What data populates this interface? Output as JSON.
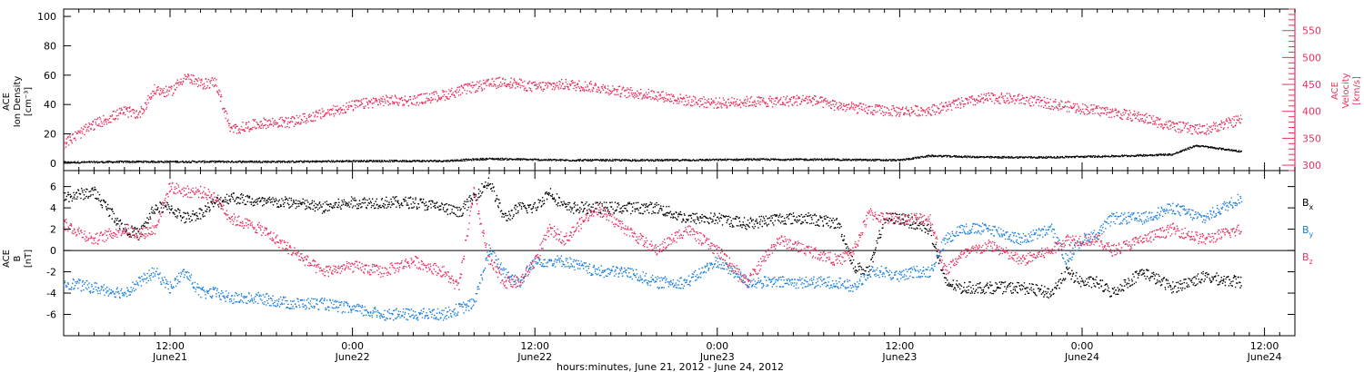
{
  "colors": {
    "axis": "#000000",
    "density": "#000000",
    "velocity": "#e8325e",
    "bx": "#000000",
    "by": "#1a7fe0",
    "bz": "#e8325e"
  },
  "x_axis": {
    "title": "hours:minutes, June 21, 2012 - June 24, 2012",
    "range_hours": [
      5,
      86
    ],
    "ticks": [
      {
        "hour": 12,
        "label": "12:00",
        "date": "June21"
      },
      {
        "hour": 24,
        "label": "0:00",
        "date": "June22"
      },
      {
        "hour": 36,
        "label": "12:00",
        "date": "June22"
      },
      {
        "hour": 48,
        "label": "0:00",
        "date": "June23"
      },
      {
        "hour": 60,
        "label": "12:00",
        "date": "June23"
      },
      {
        "hour": 72,
        "label": "0:00",
        "date": "June24"
      },
      {
        "hour": 84,
        "label": "12:00",
        "date": "June24"
      }
    ]
  },
  "chart_data": [
    {
      "type": "scatter",
      "panel": "top",
      "ylabel_left": [
        "ACE",
        "Ion Density",
        "[cm⁻³]"
      ],
      "ylabel_right": [
        "ACE",
        "Velocity",
        "[km/s]"
      ],
      "ylim_left": [
        -5,
        105
      ],
      "ylim_right": [
        290,
        590
      ],
      "yticks_left": [
        0,
        20,
        40,
        60,
        80,
        100
      ],
      "yticks_right": [
        300,
        350,
        400,
        450,
        500,
        550
      ],
      "series": [
        {
          "key": "density",
          "axis": "left",
          "x_hours": [
            5,
            10,
            15,
            20,
            25,
            30,
            33,
            38,
            45,
            50,
            55,
            60,
            62,
            66,
            70,
            75,
            78,
            79.5,
            81,
            82.5
          ],
          "values": [
            0.5,
            1,
            1,
            1,
            1.5,
            1.5,
            3,
            2,
            2,
            2.5,
            2.5,
            2,
            5,
            4,
            4,
            5,
            6,
            12,
            10,
            8
          ]
        },
        {
          "key": "velocity",
          "axis": "right",
          "x_hours": [
            5,
            7,
            9,
            10,
            11,
            12,
            13,
            14,
            15,
            16,
            18,
            20,
            22,
            24,
            26,
            28,
            30,
            32,
            34,
            36,
            38,
            40,
            42,
            44,
            46,
            48,
            50,
            52,
            54,
            56,
            58,
            60,
            62,
            64,
            66,
            68,
            70,
            72,
            74,
            76,
            78,
            80,
            82.5
          ],
          "values": [
            340,
            375,
            400,
            395,
            440,
            435,
            465,
            450,
            455,
            365,
            378,
            380,
            395,
            410,
            420,
            420,
            430,
            445,
            455,
            445,
            450,
            445,
            435,
            430,
            420,
            415,
            418,
            418,
            422,
            410,
            403,
            400,
            402,
            415,
            425,
            422,
            414,
            405,
            398,
            388,
            372,
            365,
            385
          ]
        }
      ]
    },
    {
      "type": "scatter",
      "panel": "bottom",
      "ylabel_left": [
        "ACE",
        "B",
        "[nT]"
      ],
      "ylim": [
        -8,
        7.5
      ],
      "yticks": [
        -6,
        -4,
        -2,
        0,
        2,
        4,
        6
      ],
      "legend_location": "right",
      "series": [
        {
          "key": "bx",
          "label": "B",
          "subscript": "x",
          "x_hours": [
            5,
            7,
            9,
            10,
            11,
            12,
            13,
            14,
            15,
            16,
            18,
            20,
            22,
            24,
            26,
            28,
            30,
            31,
            32,
            33,
            34,
            35,
            36,
            37,
            38,
            40,
            42,
            44,
            46,
            48,
            50,
            52,
            54,
            56,
            57,
            58,
            59,
            60,
            61,
            62,
            63,
            64,
            66,
            68,
            70,
            71,
            72,
            73,
            74,
            76,
            78,
            80,
            82.5
          ],
          "values": [
            5,
            5.5,
            2,
            1.5,
            4,
            4,
            3,
            3.5,
            4.5,
            5,
            4.5,
            4.5,
            4,
            4.5,
            4.5,
            4.5,
            4,
            3.5,
            5,
            6.5,
            3,
            4,
            4,
            5.5,
            4,
            4,
            4,
            4,
            3,
            3,
            2.5,
            3,
            3,
            2.5,
            -1.5,
            -2,
            3,
            3,
            2.5,
            2,
            -3,
            -3.5,
            -3.5,
            -3.5,
            -4,
            -2,
            -3,
            -3,
            -4,
            -2,
            -3.5,
            -2.5,
            -3
          ]
        },
        {
          "key": "by",
          "label": "B",
          "subscript": "y",
          "x_hours": [
            5,
            7,
            9,
            10,
            11,
            12,
            13,
            14,
            15,
            16,
            18,
            20,
            22,
            24,
            26,
            28,
            30,
            31,
            32,
            33,
            34,
            35,
            36,
            37,
            38,
            40,
            42,
            44,
            46,
            48,
            50,
            52,
            54,
            56,
            57,
            58,
            59,
            60,
            61,
            62,
            63,
            64,
            66,
            68,
            70,
            71,
            72,
            73,
            74,
            76,
            78,
            80,
            82.5
          ],
          "values": [
            -3,
            -3.5,
            -4,
            -3,
            -2,
            -3.5,
            -2,
            -4,
            -4,
            -4.5,
            -4.5,
            -5,
            -5,
            -5.5,
            -6,
            -6,
            -6,
            -5.5,
            -5,
            0,
            -2,
            -3,
            -1,
            -1,
            -1,
            -2,
            -2,
            -3,
            -3,
            -1,
            -3,
            -3,
            -3,
            -3,
            -3.5,
            -2,
            -2,
            -2.5,
            -2,
            -2,
            1,
            2,
            2,
            1,
            2,
            -1,
            1,
            1.5,
            3,
            3,
            4,
            3,
            5
          ]
        },
        {
          "key": "bz",
          "label": "B",
          "subscript": "z",
          "x_hours": [
            5,
            7,
            9,
            10,
            11,
            12,
            13,
            14,
            15,
            16,
            18,
            20,
            22,
            24,
            26,
            28,
            30,
            31,
            32,
            33,
            34,
            35,
            36,
            37,
            38,
            40,
            42,
            44,
            46,
            48,
            50,
            52,
            54,
            56,
            57,
            58,
            59,
            60,
            61,
            62,
            63,
            64,
            66,
            68,
            70,
            71,
            72,
            73,
            74,
            76,
            78,
            80,
            82.5
          ],
          "values": [
            2.5,
            1,
            2,
            1.5,
            2,
            6,
            5.5,
            5.5,
            5,
            3,
            2,
            0,
            -2,
            -1.5,
            -2,
            -1,
            -2,
            -3.5,
            5.5,
            -1,
            -3,
            -3,
            -1,
            2,
            1,
            4,
            2,
            0,
            2,
            0,
            -3,
            1,
            0,
            -1,
            0,
            3.5,
            3,
            3,
            3,
            3,
            -2,
            -0.5,
            0.5,
            -1,
            0,
            1,
            1,
            1,
            0,
            1,
            2,
            1,
            2
          ]
        }
      ]
    }
  ]
}
